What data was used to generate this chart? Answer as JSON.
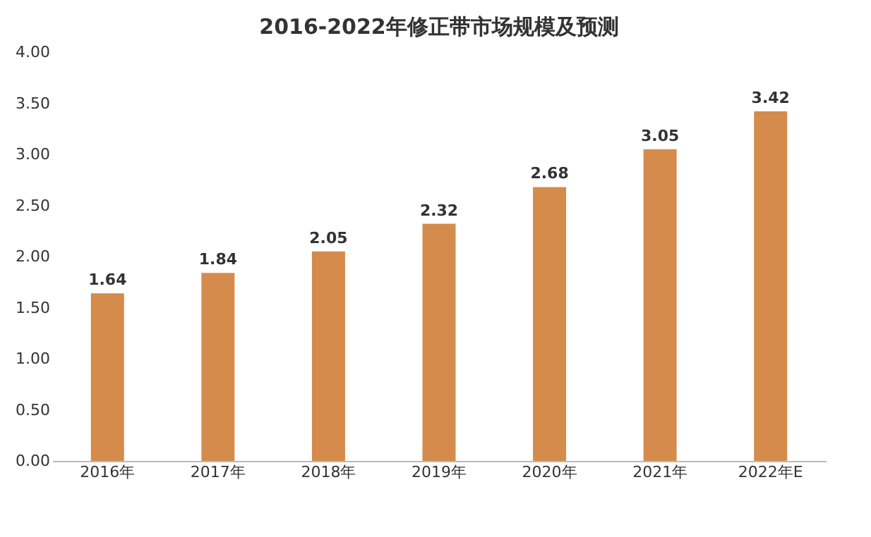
{
  "chart_data": {
    "type": "bar",
    "title": "2016-2022年修正带市场规模及预测",
    "categories": [
      "2016年",
      "2017年",
      "2018年",
      "2019年",
      "2020年",
      "2021年",
      "2022年E"
    ],
    "values": [
      1.64,
      1.84,
      2.05,
      2.32,
      2.68,
      3.05,
      3.42
    ],
    "color": "#d58b4b",
    "ylim": [
      0,
      4
    ],
    "yticks": [
      {
        "value": 0,
        "label": "0.00"
      },
      {
        "value": 0.5,
        "label": "0.50"
      },
      {
        "value": 1,
        "label": "1.00"
      },
      {
        "value": 1.5,
        "label": "1.50"
      },
      {
        "value": 2,
        "label": "2.00"
      },
      {
        "value": 2.5,
        "label": "2.50"
      },
      {
        "value": 3,
        "label": "3.00"
      },
      {
        "value": 3.5,
        "label": "3.50"
      },
      {
        "value": 4,
        "label": "4.00"
      }
    ],
    "data_labels": true,
    "grid": false
  }
}
